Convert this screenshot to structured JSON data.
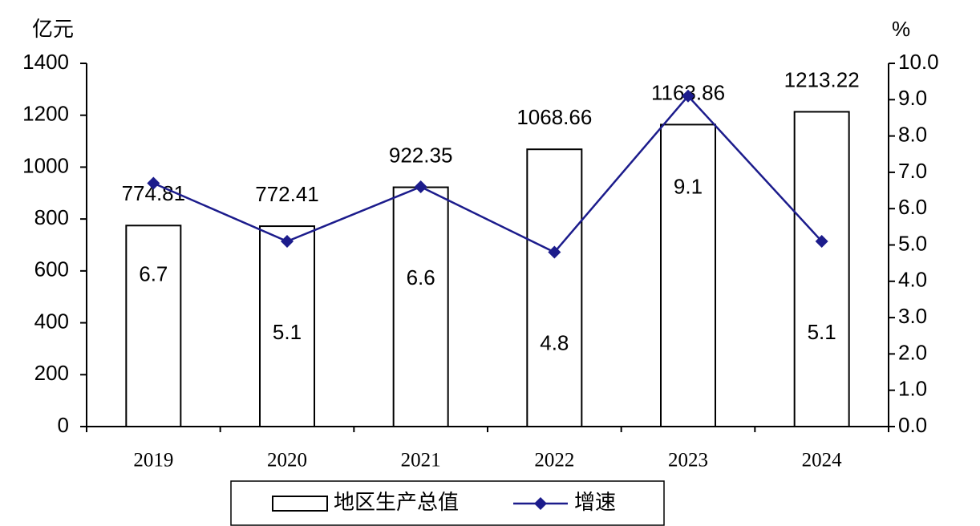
{
  "chart_data": {
    "type": "bar",
    "y_label": "亿元",
    "y2_label": "%",
    "categories": [
      "2019",
      "2020",
      "2021",
      "2022",
      "2023",
      "2024"
    ],
    "series": [
      {
        "name": "地区生产总值",
        "type": "bar",
        "color": "#ffffff",
        "values": [
          774.81,
          772.41,
          922.35,
          1068.66,
          1163.86,
          1213.22
        ]
      },
      {
        "name": "增速",
        "type": "line",
        "axis": "y2",
        "color": "#1c1c8c",
        "values": [
          6.7,
          5.1,
          6.6,
          4.8,
          9.1,
          5.1
        ]
      }
    ],
    "ylim": [
      0,
      1400
    ],
    "yticks": [
      0,
      200,
      400,
      600,
      800,
      1000,
      1200,
      1400
    ],
    "y2lim": [
      0,
      10
    ],
    "y2ticks": [
      {
        "value": 0,
        "label": "0.0"
      },
      {
        "value": 1,
        "label": "1.0"
      },
      {
        "value": 2,
        "label": "2.0"
      },
      {
        "value": 3,
        "label": "3.0"
      },
      {
        "value": 4,
        "label": "4.0"
      },
      {
        "value": 5,
        "label": "5.0"
      },
      {
        "value": 6,
        "label": "6.0"
      },
      {
        "value": 7,
        "label": "7.0"
      },
      {
        "value": 8,
        "label": "8.0"
      },
      {
        "value": 9,
        "label": "9.0"
      },
      {
        "value": 10,
        "label": "10.0"
      }
    ],
    "legend": "bottom"
  }
}
